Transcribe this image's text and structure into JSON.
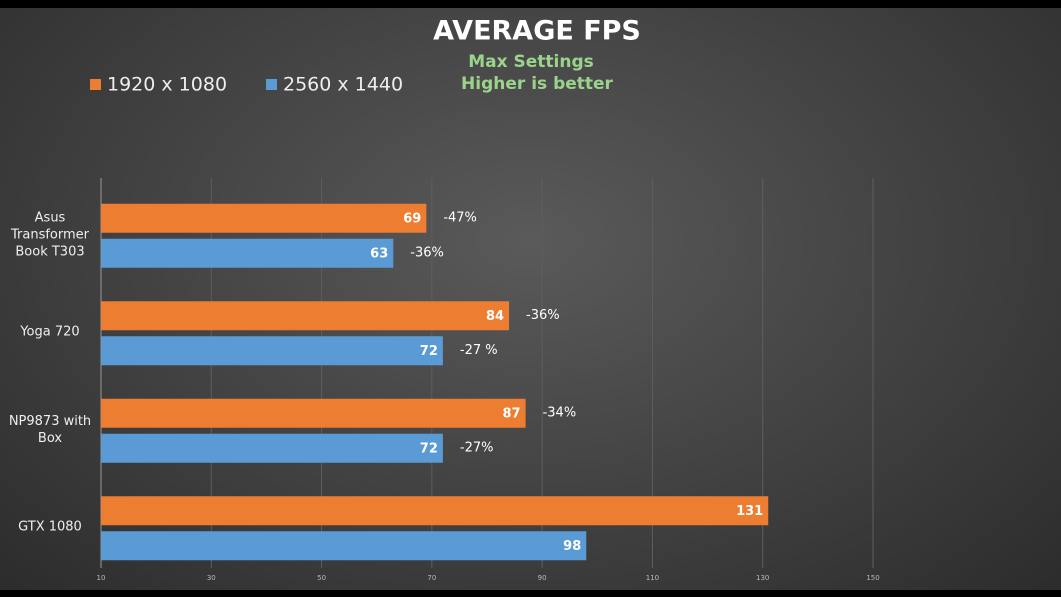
{
  "chart_data": {
    "type": "hbar",
    "title": "AVERAGE FPS",
    "subtitle": "Max Settings",
    "note": "Higher is better",
    "categories": [
      "Asus Transformer Book T303",
      "Yoga 720",
      "NP9873 with Box",
      "GTX 1080"
    ],
    "series": [
      {
        "name": "1920 x 1080",
        "color": "#ed7d31",
        "values": [
          69,
          84,
          87,
          131
        ],
        "annotations": [
          "-47%",
          "-36%",
          "-34%",
          null
        ]
      },
      {
        "name": "2560 x 1440",
        "color": "#5b9bd5",
        "values": [
          63,
          72,
          72,
          98
        ],
        "annotations": [
          "-36%",
          "-27 %",
          "-27%",
          null
        ]
      }
    ],
    "xlim": [
      10,
      150
    ],
    "xticks": [
      10,
      30,
      50,
      70,
      90,
      110,
      130,
      150
    ],
    "grid": true
  }
}
